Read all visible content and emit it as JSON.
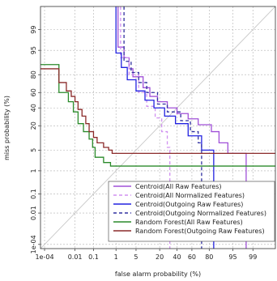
{
  "chart_data": {
    "type": "line",
    "xlabel": "false alarm probability (%)",
    "ylabel": "miss probability (%)",
    "x_scale": "probit",
    "y_scale": "probit",
    "xlim": [
      5e-05,
      99.9
    ],
    "ylim": [
      5e-05,
      99.9
    ],
    "x_ticks": [
      {
        "value": 0.0001,
        "label": "1e-04"
      },
      {
        "value": 0.01,
        "label": "0.01"
      },
      {
        "value": 0.1,
        "label": "0.1"
      },
      {
        "value": 1,
        "label": "1"
      },
      {
        "value": 5,
        "label": "5"
      },
      {
        "value": 20,
        "label": "20"
      },
      {
        "value": 40,
        "label": "40"
      },
      {
        "value": 60,
        "label": "60"
      },
      {
        "value": 80,
        "label": "80"
      },
      {
        "value": 95,
        "label": "95"
      },
      {
        "value": 99,
        "label": "99"
      }
    ],
    "y_ticks": [
      {
        "value": 0.0001,
        "label": "1e-04"
      },
      {
        "value": 0.01,
        "label": "0.01"
      },
      {
        "value": 0.1,
        "label": "0.1"
      },
      {
        "value": 1,
        "label": "1"
      },
      {
        "value": 5,
        "label": "5"
      },
      {
        "value": 20,
        "label": "20"
      },
      {
        "value": 40,
        "label": "40"
      },
      {
        "value": 60,
        "label": "60"
      },
      {
        "value": 80,
        "label": "80"
      },
      {
        "value": 95,
        "label": "95"
      },
      {
        "value": 99,
        "label": "99"
      }
    ],
    "grid": true,
    "diagonal": true,
    "legend_position": "bottom-right",
    "series": [
      {
        "name": "Centroid(All Raw Features)",
        "color": "#a050d8",
        "dash": "solid",
        "points": [
          [
            1.2,
            99.9
          ],
          [
            1.2,
            96
          ],
          [
            2,
            96
          ],
          [
            2,
            92
          ],
          [
            3,
            92
          ],
          [
            3,
            85
          ],
          [
            4,
            85
          ],
          [
            4,
            78
          ],
          [
            8,
            78
          ],
          [
            8,
            66
          ],
          [
            12,
            66
          ],
          [
            12,
            55
          ],
          [
            18,
            55
          ],
          [
            18,
            48
          ],
          [
            28,
            48
          ],
          [
            28,
            40
          ],
          [
            40,
            40
          ],
          [
            40,
            33
          ],
          [
            55,
            33
          ],
          [
            55,
            27
          ],
          [
            68,
            27
          ],
          [
            68,
            21
          ],
          [
            82,
            21
          ],
          [
            82,
            15
          ],
          [
            88,
            15
          ],
          [
            88,
            8
          ],
          [
            93,
            8
          ],
          [
            93,
            4
          ],
          [
            98.2,
            4
          ],
          [
            98.2,
            5e-05
          ]
        ]
      },
      {
        "name": "Centroid(All Normalized Features)",
        "color": "#d090f0",
        "dash": "dashed",
        "points": [
          [
            1.5,
            99.9
          ],
          [
            1.5,
            92
          ],
          [
            3,
            92
          ],
          [
            3,
            80
          ],
          [
            6,
            80
          ],
          [
            6,
            60
          ],
          [
            10,
            60
          ],
          [
            10,
            42
          ],
          [
            16,
            42
          ],
          [
            16,
            28
          ],
          [
            22,
            28
          ],
          [
            22,
            15
          ],
          [
            28,
            15
          ],
          [
            28,
            6
          ],
          [
            31,
            6
          ],
          [
            31,
            5e-05
          ]
        ]
      },
      {
        "name": "Centroid(Outgoing Raw Features)",
        "color": "#2222e0",
        "dash": "solid",
        "points": [
          [
            1.0,
            99.9
          ],
          [
            1.0,
            94
          ],
          [
            1.6,
            94
          ],
          [
            1.6,
            86
          ],
          [
            2.6,
            86
          ],
          [
            2.6,
            75
          ],
          [
            5,
            75
          ],
          [
            5,
            62
          ],
          [
            9,
            62
          ],
          [
            9,
            50
          ],
          [
            15,
            50
          ],
          [
            15,
            40
          ],
          [
            25,
            40
          ],
          [
            25,
            30
          ],
          [
            38,
            30
          ],
          [
            38,
            22
          ],
          [
            55,
            22
          ],
          [
            55,
            12
          ],
          [
            72,
            12
          ],
          [
            72,
            5
          ],
          [
            84,
            5
          ],
          [
            84,
            5e-05
          ]
        ]
      },
      {
        "name": "Centroid(Outgoing Normalized Features)",
        "color": "#3030a0",
        "dash": "dashed",
        "points": [
          [
            2.0,
            99.9
          ],
          [
            2.0,
            90
          ],
          [
            3.5,
            90
          ],
          [
            3.5,
            82
          ],
          [
            6,
            82
          ],
          [
            6,
            72
          ],
          [
            10,
            72
          ],
          [
            10,
            60
          ],
          [
            18,
            60
          ],
          [
            18,
            45
          ],
          [
            28,
            45
          ],
          [
            28,
            35
          ],
          [
            45,
            35
          ],
          [
            45,
            25
          ],
          [
            58,
            25
          ],
          [
            58,
            15
          ],
          [
            68,
            15
          ],
          [
            68,
            8
          ],
          [
            72,
            8
          ],
          [
            72,
            5e-05
          ]
        ]
      },
      {
        "name": "Random Forest(All Raw Features)",
        "color": "#2a8a2a",
        "dash": "solid",
        "points": [
          [
            5e-05,
            88
          ],
          [
            0.001,
            88
          ],
          [
            0.001,
            60
          ],
          [
            0.004,
            60
          ],
          [
            0.004,
            48
          ],
          [
            0.008,
            48
          ],
          [
            0.008,
            35
          ],
          [
            0.015,
            35
          ],
          [
            0.015,
            22
          ],
          [
            0.03,
            22
          ],
          [
            0.03,
            15
          ],
          [
            0.06,
            15
          ],
          [
            0.06,
            10
          ],
          [
            0.09,
            10
          ],
          [
            0.09,
            6
          ],
          [
            0.12,
            6
          ],
          [
            0.12,
            3
          ],
          [
            0.3,
            3
          ],
          [
            0.3,
            2
          ],
          [
            0.6,
            2
          ],
          [
            0.6,
            1.5
          ],
          [
            99.9,
            1.5
          ]
        ]
      },
      {
        "name": "Random Forest(Outgoing Raw Features)",
        "color": "#8b2a2a",
        "dash": "solid",
        "points": [
          [
            5e-05,
            85
          ],
          [
            0.001,
            85
          ],
          [
            0.001,
            72
          ],
          [
            0.003,
            72
          ],
          [
            0.003,
            62
          ],
          [
            0.006,
            62
          ],
          [
            0.006,
            55
          ],
          [
            0.01,
            55
          ],
          [
            0.01,
            48
          ],
          [
            0.015,
            48
          ],
          [
            0.015,
            38
          ],
          [
            0.025,
            38
          ],
          [
            0.025,
            30
          ],
          [
            0.04,
            30
          ],
          [
            0.04,
            22
          ],
          [
            0.06,
            22
          ],
          [
            0.06,
            15
          ],
          [
            0.1,
            15
          ],
          [
            0.1,
            11
          ],
          [
            0.15,
            11
          ],
          [
            0.15,
            8
          ],
          [
            0.3,
            8
          ],
          [
            0.3,
            6
          ],
          [
            0.5,
            6
          ],
          [
            0.5,
            5
          ],
          [
            0.7,
            5
          ],
          [
            0.7,
            4
          ],
          [
            99.9,
            4
          ]
        ]
      }
    ]
  }
}
